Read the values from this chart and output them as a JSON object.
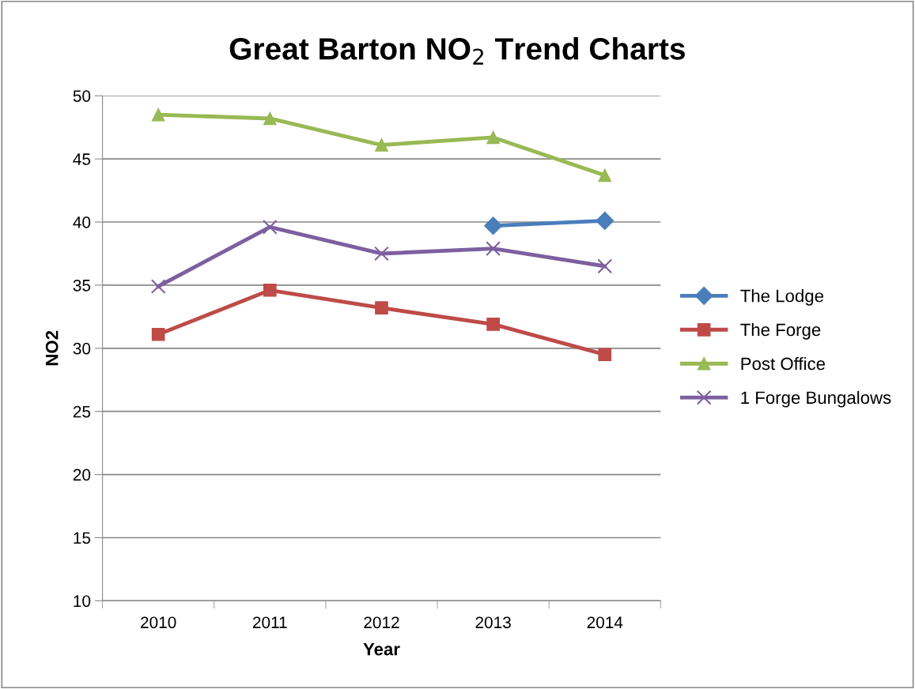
{
  "chart_data": {
    "type": "line",
    "title": "Great Barton NO$_{2}$ Trend Charts",
    "xlabel": "Year",
    "ylabel": "NO2",
    "categories": [
      "2010",
      "2011",
      "2012",
      "2013",
      "2014"
    ],
    "series": [
      {
        "name": "The Lodge",
        "color": "#4a7ebb",
        "marker": "diamond",
        "values": [
          null,
          null,
          null,
          39.7,
          40.1
        ]
      },
      {
        "name": "The Forge",
        "color": "#be4b48",
        "marker": "square",
        "values": [
          31.1,
          34.6,
          33.2,
          31.9,
          29.5
        ]
      },
      {
        "name": "Post Office",
        "color": "#98b954",
        "marker": "triangle",
        "values": [
          48.5,
          48.2,
          46.1,
          46.7,
          43.7
        ]
      },
      {
        "name": "1 Forge Bungalows",
        "color": "#7d5fa0",
        "marker": "cross",
        "values": [
          34.9,
          39.6,
          37.5,
          37.9,
          36.5
        ]
      }
    ],
    "ylim": [
      10,
      50
    ],
    "yticks": [
      10,
      15,
      20,
      25,
      30,
      35,
      40,
      45,
      50
    ],
    "grid": "y",
    "legend": "right",
    "line_style": "solid"
  }
}
